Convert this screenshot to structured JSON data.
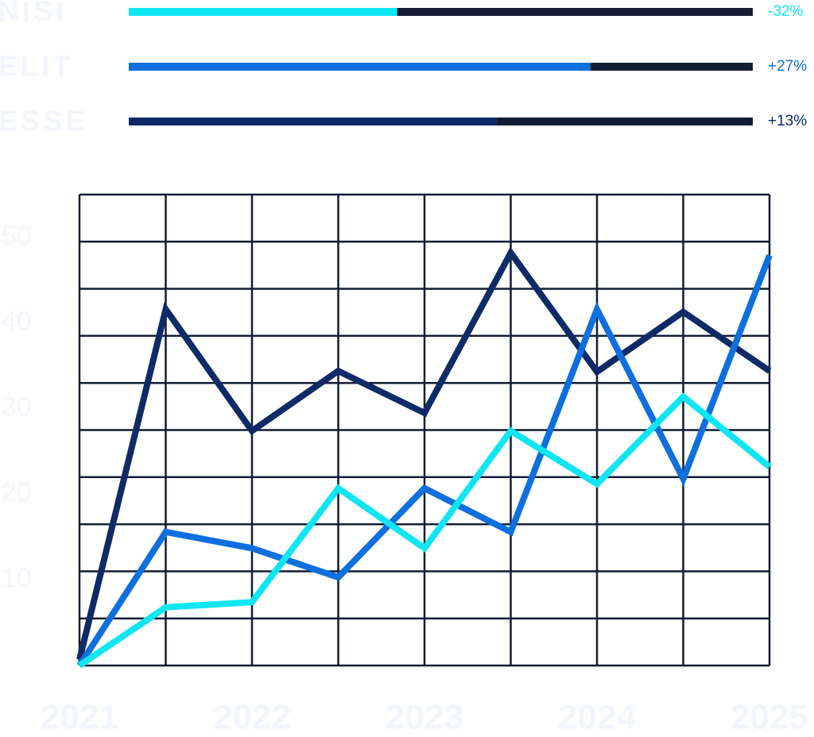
{
  "chart_data": [
    {
      "type": "progress",
      "categories": [
        "NISI",
        "ELIT",
        "ESSE"
      ],
      "values": [
        43,
        74,
        59
      ],
      "xlim": [
        0,
        100
      ],
      "colors": [
        "#0fe6f2",
        "#0e6fde",
        "#0f2b67"
      ],
      "track_color": "#131c33",
      "changes": [
        -32,
        27,
        13
      ],
      "change_labels": [
        "-32%",
        "+27%",
        "+13%"
      ]
    },
    {
      "type": "line",
      "x": [
        2021,
        2021.5,
        2022,
        2022.5,
        2023,
        2023.5,
        2024,
        2024.5,
        2025
      ],
      "xlim": [
        2021,
        2025
      ],
      "xticks": [
        2021,
        2022,
        2023,
        2024,
        2025
      ],
      "ylim": [
        0,
        55
      ],
      "yticks": [
        10,
        20,
        30,
        40,
        50
      ],
      "series": [
        {
          "name": "ESSE",
          "color": "#0f2b67",
          "values": [
            0.7,
            41.6,
            27.4,
            34.4,
            29.5,
            48.2,
            34.3,
            41.3,
            34.4
          ]
        },
        {
          "name": "ELIT",
          "color": "#0e6fde",
          "values": [
            0,
            15.6,
            13.7,
            10.3,
            20.7,
            15.6,
            41.6,
            21.8,
            47.9
          ]
        },
        {
          "name": "NISI",
          "color": "#0fe6f2",
          "values": [
            0,
            6.8,
            7.4,
            20.7,
            13.7,
            27.4,
            21.2,
            31.4,
            23.2
          ]
        }
      ]
    }
  ]
}
